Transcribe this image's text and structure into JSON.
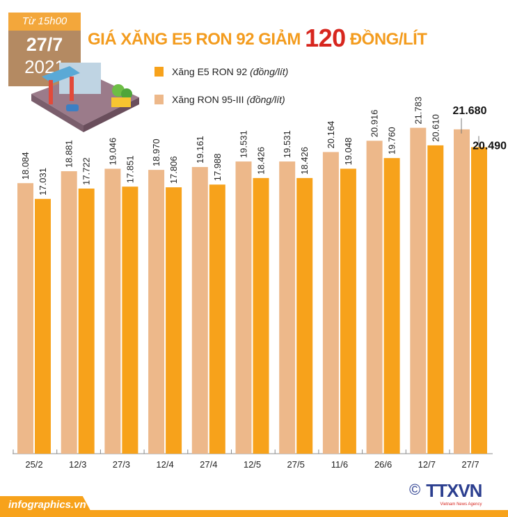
{
  "header": {
    "time_label": "Từ 15h00",
    "date": "27/7",
    "year": "2021",
    "title_pre": "GIÁ XĂNG E5 RON 92 GIẢM",
    "title_num": "120",
    "title_post": "ĐỒNG/LÍT"
  },
  "footer": {
    "site": "infographics.vn",
    "logo": "TTXVN",
    "logo_sub": "Vietnam News Agency",
    "copyright": "©"
  },
  "colors": {
    "e5": "#F7A21B",
    "ron95": "#EDB88A",
    "title": "#F39C1F",
    "highlight": "#D7261E"
  },
  "chart_data": {
    "type": "bar",
    "categories": [
      "25/2",
      "12/3",
      "27/3",
      "12/4",
      "27/4",
      "12/5",
      "27/5",
      "11/6",
      "26/6",
      "12/7",
      "27/7"
    ],
    "series": [
      {
        "name": "Xăng RON 95-III",
        "unit": "(đồng/lít)",
        "values": [
          18.084,
          18.881,
          19.046,
          18.97,
          19.161,
          19.531,
          19.531,
          20.164,
          20.916,
          21.783,
          21.68
        ],
        "labels": [
          "18.084",
          "18.881",
          "19.046",
          "18.970",
          "19.161",
          "19.531",
          "19.531",
          "20.164",
          "20.916",
          "21.783",
          "21.680"
        ]
      },
      {
        "name": "Xăng E5 RON 92",
        "unit": "(đồng/lít)",
        "values": [
          17.031,
          17.722,
          17.851,
          17.806,
          17.988,
          18.426,
          18.426,
          19.048,
          19.76,
          20.61,
          20.49
        ],
        "labels": [
          "17.031",
          "17.722",
          "17.851",
          "17.806",
          "17.988",
          "18.426",
          "18.426",
          "19.048",
          "19.760",
          "20.610",
          "20.490"
        ]
      }
    ],
    "ylim": [
      0,
      22.3
    ],
    "grid": false,
    "legend": "top-left"
  }
}
